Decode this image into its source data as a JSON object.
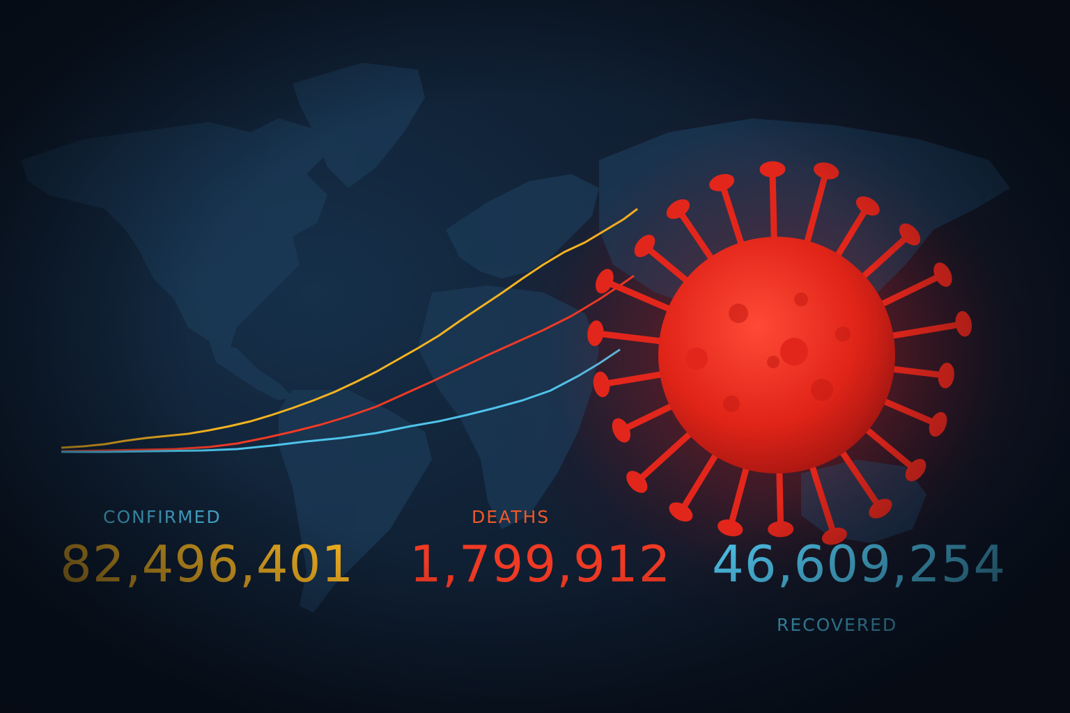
{
  "colors": {
    "confirmed": "#f5b320",
    "deaths": "#f03a24",
    "recovered": "#4fc3ea",
    "label_confirmed": "#4fc3ea",
    "label_deaths": "#f05a2a",
    "label_recovered": "#4fc3ea",
    "virus": "#e8271d"
  },
  "icons": [
    "world-map-background",
    "virus-illustration"
  ],
  "stats": {
    "confirmed": {
      "label": "CONFIRMED",
      "value": "82,496,401"
    },
    "deaths": {
      "label": "DEATHS",
      "value": "1,799,912"
    },
    "recovered": {
      "label": "RECOVERED",
      "value": "46,609,254"
    }
  }
}
